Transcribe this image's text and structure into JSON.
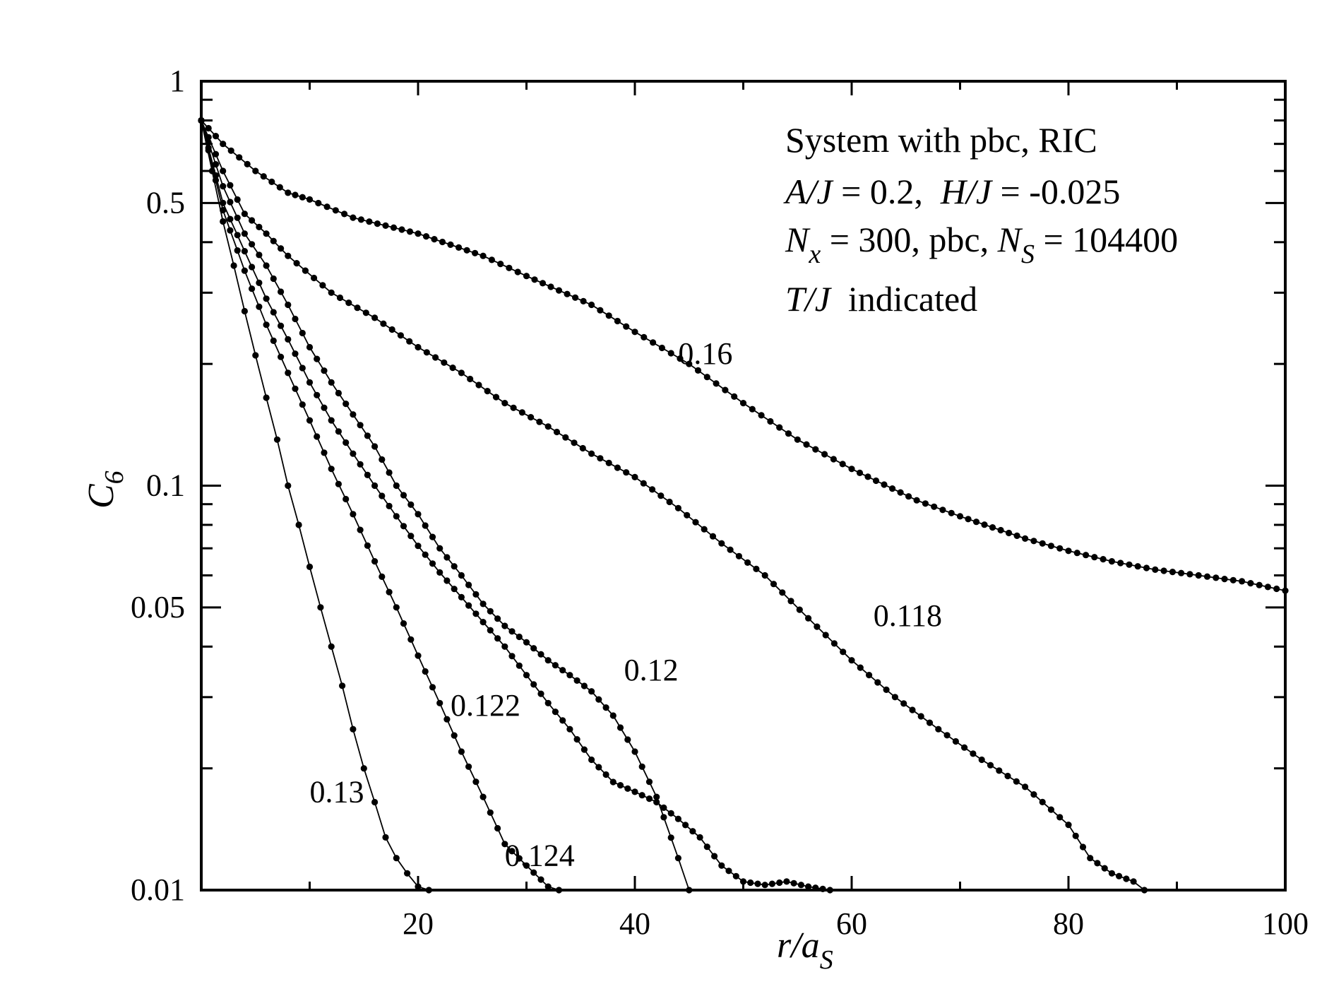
{
  "chart_data": {
    "type": "line",
    "yscale": "log",
    "xlim": [
      0,
      100
    ],
    "ylim": [
      0.01,
      1
    ],
    "xticks": [
      "20",
      "40",
      "60",
      "80",
      "100"
    ],
    "yticks": [
      "1",
      "0.5",
      "0.1",
      "0.05",
      "0.01"
    ],
    "xlabel": {
      "main": "r/a",
      "sub": "S"
    },
    "ylabel": {
      "main": "C",
      "sub": "6"
    },
    "annotation": {
      "line1": "System with pbc, RIC",
      "line2": {
        "a": "A/J",
        "b": " = 0.2,  ",
        "c": "H/J",
        "d": " = -0.025"
      },
      "line3": {
        "a": "N",
        "a_sub": "x",
        "b": " = 300, pbc, ",
        "c": "N",
        "c_sub": "S",
        "d": " = 104400"
      },
      "line4": {
        "a": "T/J",
        "b": "  indicated"
      }
    },
    "series": [
      {
        "label": "0.16",
        "label_at": [
          44,
          0.2
        ],
        "points": [
          [
            0,
            0.8
          ],
          [
            2,
            0.7
          ],
          [
            5,
            0.6
          ],
          [
            8,
            0.53
          ],
          [
            10,
            0.51
          ],
          [
            14,
            0.46
          ],
          [
            20,
            0.42
          ],
          [
            26,
            0.37
          ],
          [
            30,
            0.33
          ],
          [
            36,
            0.28
          ],
          [
            40,
            0.24
          ],
          [
            45,
            0.2
          ],
          [
            50,
            0.16
          ],
          [
            55,
            0.13
          ],
          [
            60,
            0.11
          ],
          [
            66,
            0.092
          ],
          [
            70,
            0.084
          ],
          [
            76,
            0.074
          ],
          [
            80,
            0.069
          ],
          [
            84,
            0.065
          ],
          [
            88,
            0.062
          ],
          [
            92,
            0.06
          ],
          [
            96,
            0.058
          ],
          [
            100,
            0.055
          ]
        ]
      },
      {
        "label": "0.118",
        "label_at": [
          62,
          0.045
        ],
        "points": [
          [
            0,
            0.8
          ],
          [
            2,
            0.6
          ],
          [
            4,
            0.47
          ],
          [
            6,
            0.42
          ],
          [
            8,
            0.37
          ],
          [
            12,
            0.3
          ],
          [
            16,
            0.26
          ],
          [
            20,
            0.22
          ],
          [
            24,
            0.19
          ],
          [
            28,
            0.16
          ],
          [
            32,
            0.14
          ],
          [
            36,
            0.12
          ],
          [
            40,
            0.105
          ],
          [
            44,
            0.088
          ],
          [
            48,
            0.072
          ],
          [
            52,
            0.06
          ],
          [
            56,
            0.047
          ],
          [
            60,
            0.037
          ],
          [
            64,
            0.03
          ],
          [
            68,
            0.025
          ],
          [
            72,
            0.021
          ],
          [
            76,
            0.018
          ],
          [
            80,
            0.0145
          ],
          [
            82,
            0.012
          ],
          [
            84,
            0.011
          ],
          [
            86,
            0.0105
          ],
          [
            87,
            0.01
          ]
        ]
      },
      {
        "label": "0.12",
        "label_at": [
          39,
          0.033
        ],
        "points": [
          [
            0,
            0.8
          ],
          [
            2,
            0.55
          ],
          [
            4,
            0.42
          ],
          [
            6,
            0.35
          ],
          [
            8,
            0.28
          ],
          [
            10,
            0.22
          ],
          [
            12,
            0.18
          ],
          [
            14,
            0.15
          ],
          [
            16,
            0.125
          ],
          [
            18,
            0.1
          ],
          [
            20,
            0.085
          ],
          [
            22,
            0.07
          ],
          [
            24,
            0.06
          ],
          [
            26,
            0.051
          ],
          [
            28,
            0.045
          ],
          [
            30,
            0.041
          ],
          [
            32,
            0.037
          ],
          [
            34,
            0.034
          ],
          [
            36,
            0.031
          ],
          [
            38,
            0.027
          ],
          [
            40,
            0.022
          ],
          [
            42,
            0.017
          ],
          [
            44,
            0.012
          ],
          [
            45,
            0.01
          ]
        ]
      },
      {
        "label": "0.122",
        "label_at": [
          23,
          0.027
        ],
        "points": [
          [
            0,
            0.8
          ],
          [
            2,
            0.5
          ],
          [
            4,
            0.38
          ],
          [
            6,
            0.29
          ],
          [
            8,
            0.23
          ],
          [
            10,
            0.18
          ],
          [
            12,
            0.145
          ],
          [
            14,
            0.12
          ],
          [
            16,
            0.1
          ],
          [
            18,
            0.084
          ],
          [
            20,
            0.071
          ],
          [
            22,
            0.061
          ],
          [
            24,
            0.053
          ],
          [
            26,
            0.046
          ],
          [
            28,
            0.04
          ],
          [
            30,
            0.034
          ],
          [
            32,
            0.029
          ],
          [
            34,
            0.025
          ],
          [
            36,
            0.021
          ],
          [
            38,
            0.0185
          ],
          [
            40,
            0.0175
          ],
          [
            42,
            0.0165
          ],
          [
            44,
            0.015
          ],
          [
            46,
            0.0135
          ],
          [
            48,
            0.0115
          ],
          [
            50,
            0.0105
          ],
          [
            52,
            0.0103
          ],
          [
            54,
            0.0105
          ],
          [
            56,
            0.0102
          ],
          [
            58,
            0.01
          ]
        ]
      },
      {
        "label": "0.124",
        "label_at": [
          28,
          0.0115
        ],
        "points": [
          [
            0,
            0.8
          ],
          [
            2,
            0.48
          ],
          [
            4,
            0.34
          ],
          [
            6,
            0.25
          ],
          [
            8,
            0.19
          ],
          [
            10,
            0.145
          ],
          [
            12,
            0.11
          ],
          [
            14,
            0.085
          ],
          [
            16,
            0.065
          ],
          [
            18,
            0.05
          ],
          [
            20,
            0.038
          ],
          [
            22,
            0.029
          ],
          [
            24,
            0.022
          ],
          [
            26,
            0.017
          ],
          [
            28,
            0.013
          ],
          [
            30,
            0.0115
          ],
          [
            32,
            0.0102
          ],
          [
            33,
            0.01
          ]
        ]
      },
      {
        "label": "0.13",
        "label_at": [
          10,
          0.0165
        ],
        "points": [
          [
            0,
            0.8
          ],
          [
            1,
            0.6
          ],
          [
            2,
            0.45
          ],
          [
            3,
            0.35
          ],
          [
            4,
            0.27
          ],
          [
            5,
            0.21
          ],
          [
            6,
            0.165
          ],
          [
            7,
            0.13
          ],
          [
            8,
            0.1
          ],
          [
            9,
            0.08
          ],
          [
            10,
            0.063
          ],
          [
            11,
            0.05
          ],
          [
            12,
            0.04
          ],
          [
            13,
            0.032
          ],
          [
            14,
            0.025
          ],
          [
            15,
            0.02
          ],
          [
            16,
            0.0165
          ],
          [
            17,
            0.0135
          ],
          [
            18,
            0.012
          ],
          [
            19,
            0.011
          ],
          [
            20,
            0.0102
          ],
          [
            21,
            0.01
          ]
        ]
      }
    ]
  }
}
